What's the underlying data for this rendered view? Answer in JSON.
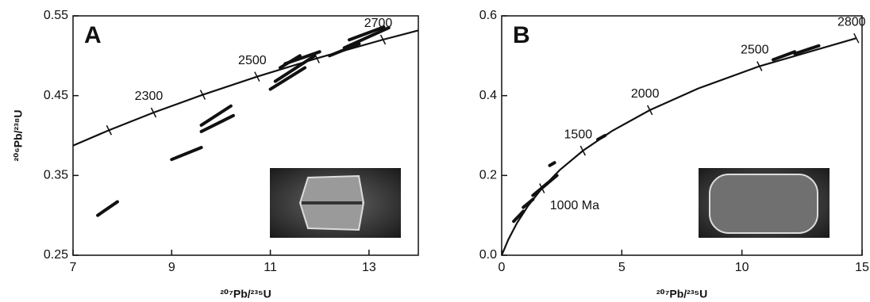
{
  "chart_data": [
    {
      "type": "line",
      "panel_label": "A",
      "x_label": "²⁰⁷Pb/²³⁵U",
      "y_label": "²⁰⁶Pb/²³⁸U",
      "xlim": [
        7,
        14
      ],
      "xticks": [
        7,
        9,
        11,
        13
      ],
      "ylim": [
        0.25,
        0.55
      ],
      "yticks": [
        0.25,
        0.35,
        0.45,
        0.55
      ],
      "series": [
        {
          "name": "Concordia",
          "color": "#111111",
          "x": [
            6.911,
            7.73,
            8.633,
            9.63,
            10.731,
            11.944,
            13.284,
            14.762
          ],
          "values": [
            0.3851,
            0.4067,
            0.4288,
            0.4511,
            0.4738,
            0.4968,
            0.5202,
            0.544
          ]
        }
      ],
      "age_ticks": {
        "x": [
          7.73,
          8.633,
          9.63,
          10.731,
          11.944,
          13.284
        ],
        "y": [
          0.4067,
          0.4288,
          0.4511,
          0.4738,
          0.4968,
          0.5202
        ]
      },
      "age_labels": [
        {
          "text": "2300",
          "x": 8.633,
          "y": 0.4288
        },
        {
          "text": "2500",
          "x": 10.731,
          "y": 0.4738
        },
        {
          "text": "2700",
          "x": 13.284,
          "y": 0.5202
        }
      ],
      "ellipses": [
        {
          "x": [
            7.5,
            7.9
          ],
          "y": [
            0.3,
            0.317
          ]
        },
        {
          "x": [
            9.0,
            9.6
          ],
          "y": [
            0.37,
            0.385
          ]
        },
        {
          "x": [
            9.6,
            10.2
          ],
          "y": [
            0.413,
            0.437
          ]
        },
        {
          "x": [
            9.6,
            10.25
          ],
          "y": [
            0.405,
            0.425
          ]
        },
        {
          "x": [
            11.0,
            11.7
          ],
          "y": [
            0.458,
            0.485
          ]
        },
        {
          "x": [
            11.1,
            11.9
          ],
          "y": [
            0.468,
            0.5
          ]
        },
        {
          "x": [
            11.2,
            11.6
          ],
          "y": [
            0.485,
            0.5
          ]
        },
        {
          "x": [
            11.3,
            12.0
          ],
          "y": [
            0.49,
            0.505
          ]
        },
        {
          "x": [
            12.2,
            12.8
          ],
          "y": [
            0.5,
            0.515
          ]
        },
        {
          "x": [
            12.5,
            13.4
          ],
          "y": [
            0.51,
            0.535
          ]
        },
        {
          "x": [
            12.6,
            13.3
          ],
          "y": [
            0.52,
            0.536
          ]
        }
      ]
    },
    {
      "type": "line",
      "panel_label": "B",
      "x_label": "²⁰⁷Pb/²³⁵U",
      "xlim": [
        0,
        15
      ],
      "xticks": [
        0,
        5,
        10,
        15
      ],
      "ylim": [
        0,
        0.6
      ],
      "yticks": [
        {
          "value": 0,
          "label": "0.0"
        },
        0.2,
        0.4,
        0.6
      ],
      "series": [
        {
          "name": "Concordia",
          "color": "#111111",
          "x": [
            0,
            0.2792,
            0.6362,
            1.093,
            1.6775,
            2.4247,
            3.3813,
            4.6045,
            6.168,
            8.17,
            10.731,
            14.762
          ],
          "values": [
            0,
            0.0395,
            0.0807,
            0.1234,
            0.1678,
            0.214,
            0.262,
            0.3119,
            0.3638,
            0.4177,
            0.4738,
            0.544
          ]
        }
      ],
      "age_ticks": {
        "x": [
          1.6775,
          3.3813,
          6.168,
          10.731,
          14.762
        ],
        "y": [
          0.1678,
          0.262,
          0.3638,
          0.4738,
          0.544
        ]
      },
      "age_labels": [
        {
          "text": "1000 Ma",
          "x": 1.6775,
          "y": 0.1678
        },
        {
          "text": "1500",
          "x": 3.3813,
          "y": 0.262
        },
        {
          "text": "2000",
          "x": 6.168,
          "y": 0.3638
        },
        {
          "text": "2500",
          "x": 10.731,
          "y": 0.4738
        },
        {
          "text": "2800",
          "x": 14.762,
          "y": 0.544
        }
      ],
      "ellipses": [
        {
          "x": [
            0.5,
            0.9
          ],
          "y": [
            0.085,
            0.11
          ]
        },
        {
          "x": [
            0.9,
            1.3
          ],
          "y": [
            0.12,
            0.14
          ]
        },
        {
          "x": [
            1.3,
            1.9
          ],
          "y": [
            0.15,
            0.18
          ]
        },
        {
          "x": [
            1.7,
            2.3
          ],
          "y": [
            0.17,
            0.2
          ]
        },
        {
          "x": [
            2.0,
            2.2
          ],
          "y": [
            0.225,
            0.232
          ]
        },
        {
          "x": [
            4.0,
            4.3
          ],
          "y": [
            0.29,
            0.3
          ]
        },
        {
          "x": [
            11.3,
            12.2
          ],
          "y": [
            0.49,
            0.51
          ]
        },
        {
          "x": [
            12.2,
            13.2
          ],
          "y": [
            0.505,
            0.525
          ]
        }
      ]
    }
  ]
}
